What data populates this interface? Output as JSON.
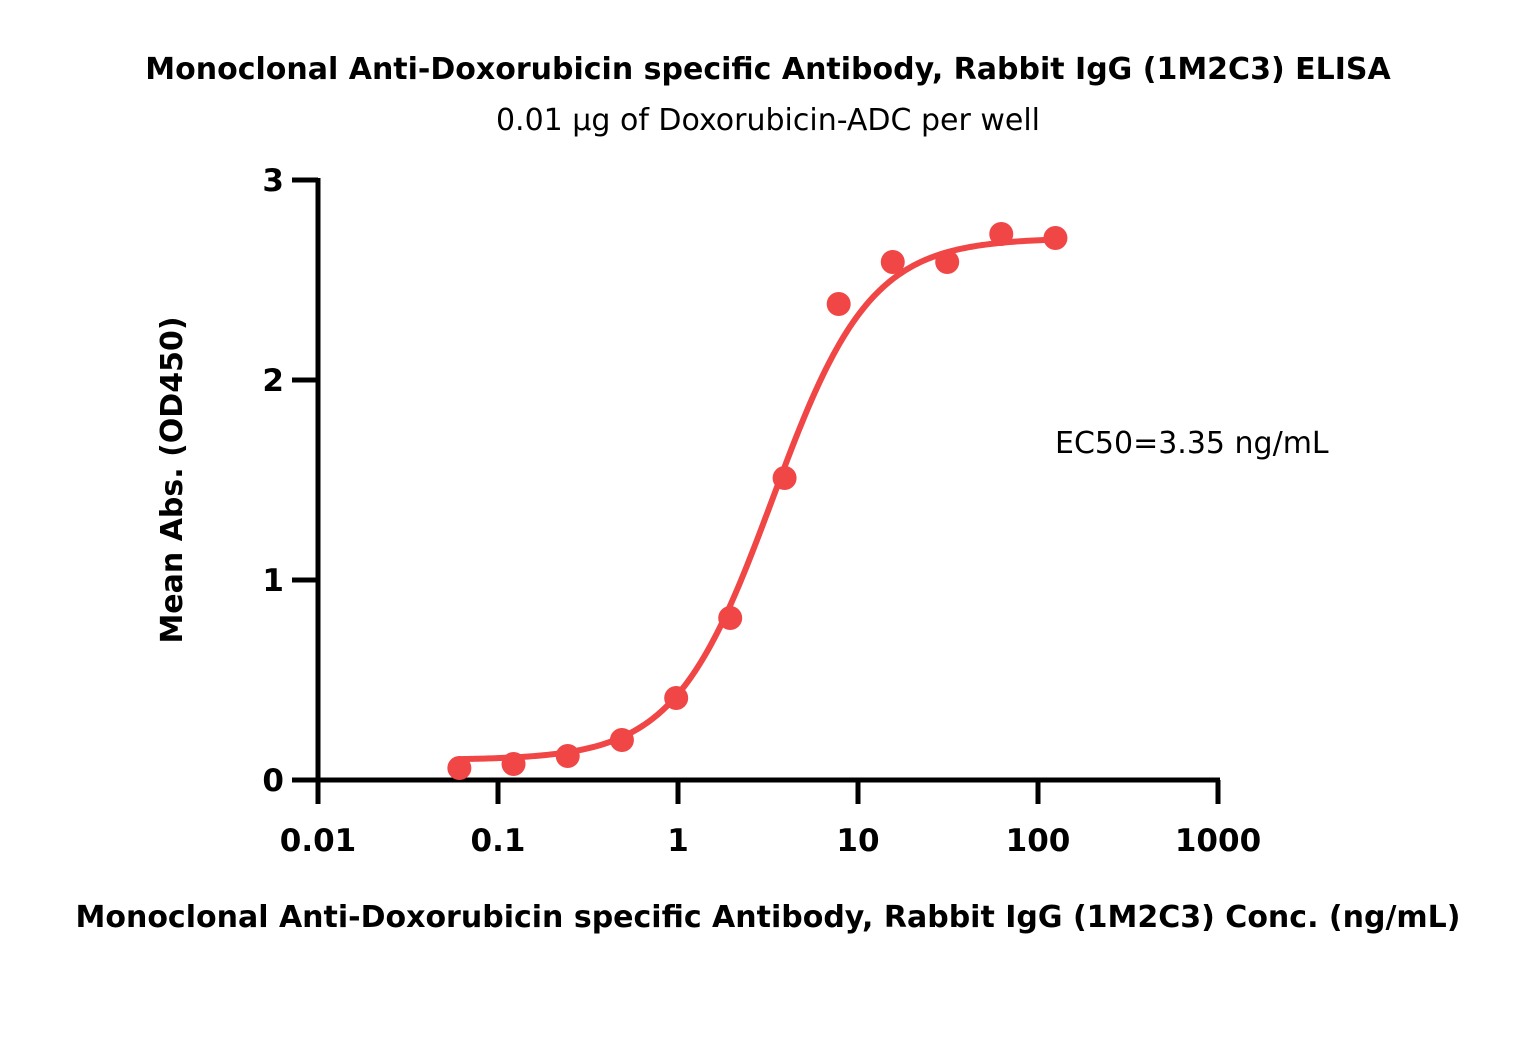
{
  "chart_data": {
    "type": "scatter",
    "title": "Monoclonal Anti-Doxorubicin specific Antibody, Rabbit IgG (1M2C3) ELISA",
    "subtitle": "0.01 µg of Doxorubicin-ADC per well",
    "xlabel": "Monoclonal Anti-Doxorubicin specific Antibody, Rabbit IgG (1M2C3) Conc. (ng/mL)",
    "ylabel": "Mean Abs. (OD450)",
    "x_scale": "log",
    "xlim": [
      0.01,
      1000
    ],
    "ylim": [
      0,
      3
    ],
    "x_ticks": [
      "0.01",
      "0.1",
      "1",
      "10",
      "100",
      "1000"
    ],
    "y_ticks": [
      "0",
      "1",
      "2",
      "3"
    ],
    "annotation": "EC50=3.35 ng/mL",
    "grid": false,
    "color": "#f04646",
    "series": [
      {
        "points": [
          {
            "x": 0.061,
            "y": 0.06
          },
          {
            "x": 0.122,
            "y": 0.08
          },
          {
            "x": 0.244,
            "y": 0.12
          },
          {
            "x": 0.488,
            "y": 0.2
          },
          {
            "x": 0.977,
            "y": 0.41
          },
          {
            "x": 1.95,
            "y": 0.81
          },
          {
            "x": 3.91,
            "y": 1.51
          },
          {
            "x": 7.81,
            "y": 2.38
          },
          {
            "x": 15.6,
            "y": 2.59
          },
          {
            "x": 31.3,
            "y": 2.59
          },
          {
            "x": 62.5,
            "y": 2.73
          },
          {
            "x": 125,
            "y": 2.71
          }
        ],
        "fit": {
          "model": "4PL",
          "bottom": 0.1,
          "top": 2.71,
          "ec50": 3.35,
          "hill": 1.6,
          "x_range": [
            0.061,
            125
          ]
        }
      }
    ]
  }
}
